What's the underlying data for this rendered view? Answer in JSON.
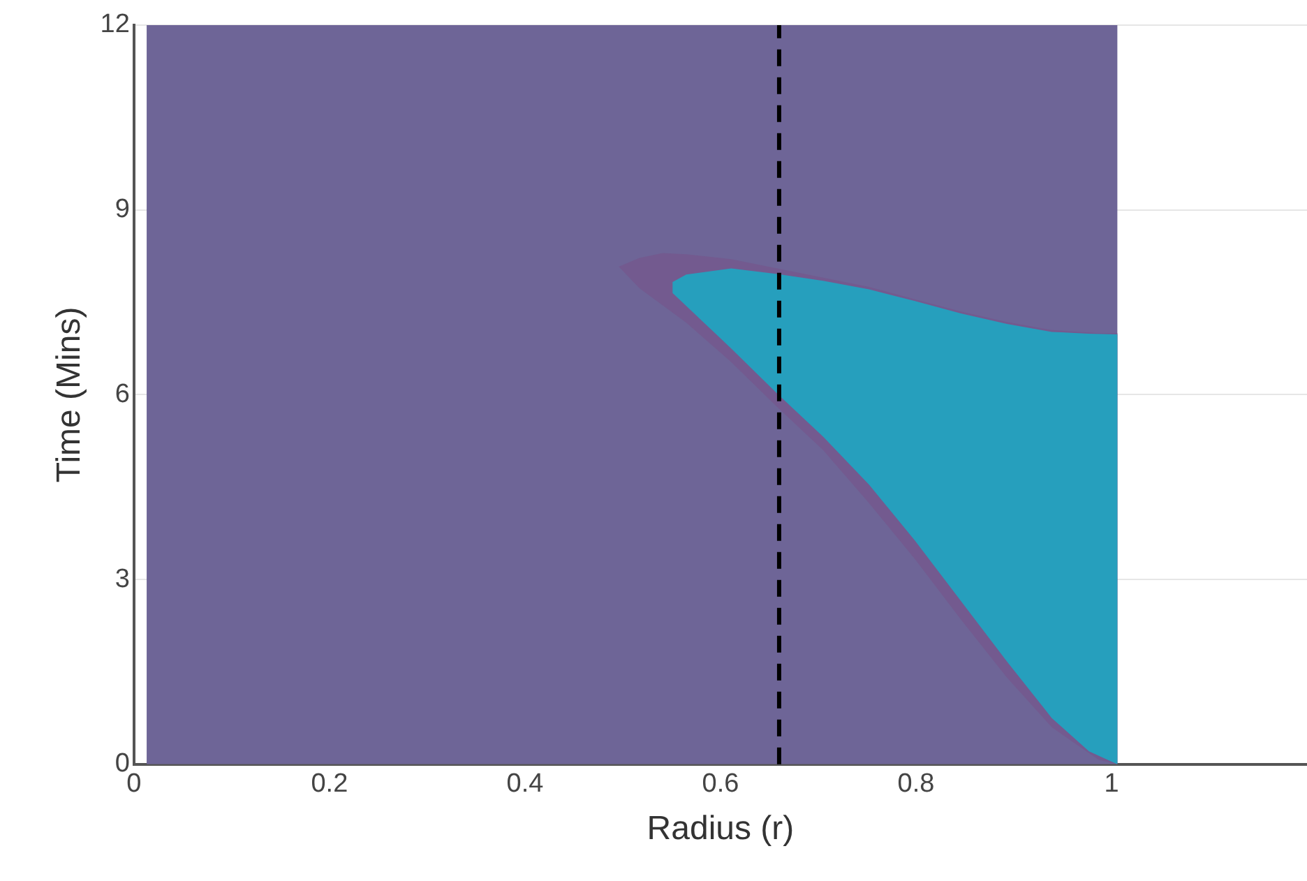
{
  "chart_data": {
    "type": "area",
    "xlabel": "Radius (r)",
    "ylabel": "Time (Mins)",
    "xlim": [
      0,
      1.2
    ],
    "xticks": [
      0,
      0.2,
      0.4,
      0.6,
      0.8,
      1
    ],
    "ylim": [
      0,
      12
    ],
    "yticks": [
      0,
      3,
      6,
      9,
      12
    ],
    "grid": true,
    "legend": false,
    "series": [
      {
        "color": "#6e6597",
        "x": [
          0.013,
          0.013,
          1.006,
          1.006
        ],
        "values": [
          0,
          12,
          12,
          0
        ]
      },
      {
        "color": "#735a8f",
        "x": [
          0.496,
          0.517,
          0.541,
          0.565,
          0.611,
          0.658,
          0.705,
          0.752,
          0.799,
          0.846,
          0.893,
          0.939,
          0.987,
          1.006,
          1.006,
          0.987,
          0.939,
          0.893,
          0.846,
          0.799,
          0.752,
          0.705,
          0.658,
          0.611,
          0.565,
          0.541,
          0.517
        ],
        "values": [
          8.08,
          8.22,
          8.3,
          8.28,
          8.2,
          8.05,
          7.9,
          7.75,
          7.55,
          7.35,
          7.18,
          7.05,
          7.0,
          7.0,
          0,
          0.07,
          0.6,
          1.41,
          2.35,
          3.33,
          4.24,
          5.1,
          5.8,
          6.53,
          7.17,
          7.45,
          7.73
        ]
      },
      {
        "color": "#269fbd",
        "x": [
          0.551,
          0.565,
          0.611,
          0.658,
          0.705,
          0.752,
          0.799,
          0.846,
          0.893,
          0.939,
          0.977,
          1.006,
          1.006,
          0.977,
          0.939,
          0.893,
          0.846,
          0.799,
          0.752,
          0.705,
          0.658,
          0.611,
          0.565,
          0.551
        ],
        "values": [
          7.83,
          7.95,
          8.05,
          7.96,
          7.85,
          7.71,
          7.52,
          7.32,
          7.15,
          7.02,
          6.99,
          6.98,
          0,
          0.21,
          0.75,
          1.67,
          2.65,
          3.63,
          4.54,
          5.32,
          6.02,
          6.75,
          7.44,
          7.65
        ]
      }
    ],
    "ref_lines": [
      {
        "axis": "x",
        "value": 0.66,
        "color": "#000000",
        "line_style": "dashed"
      }
    ]
  }
}
